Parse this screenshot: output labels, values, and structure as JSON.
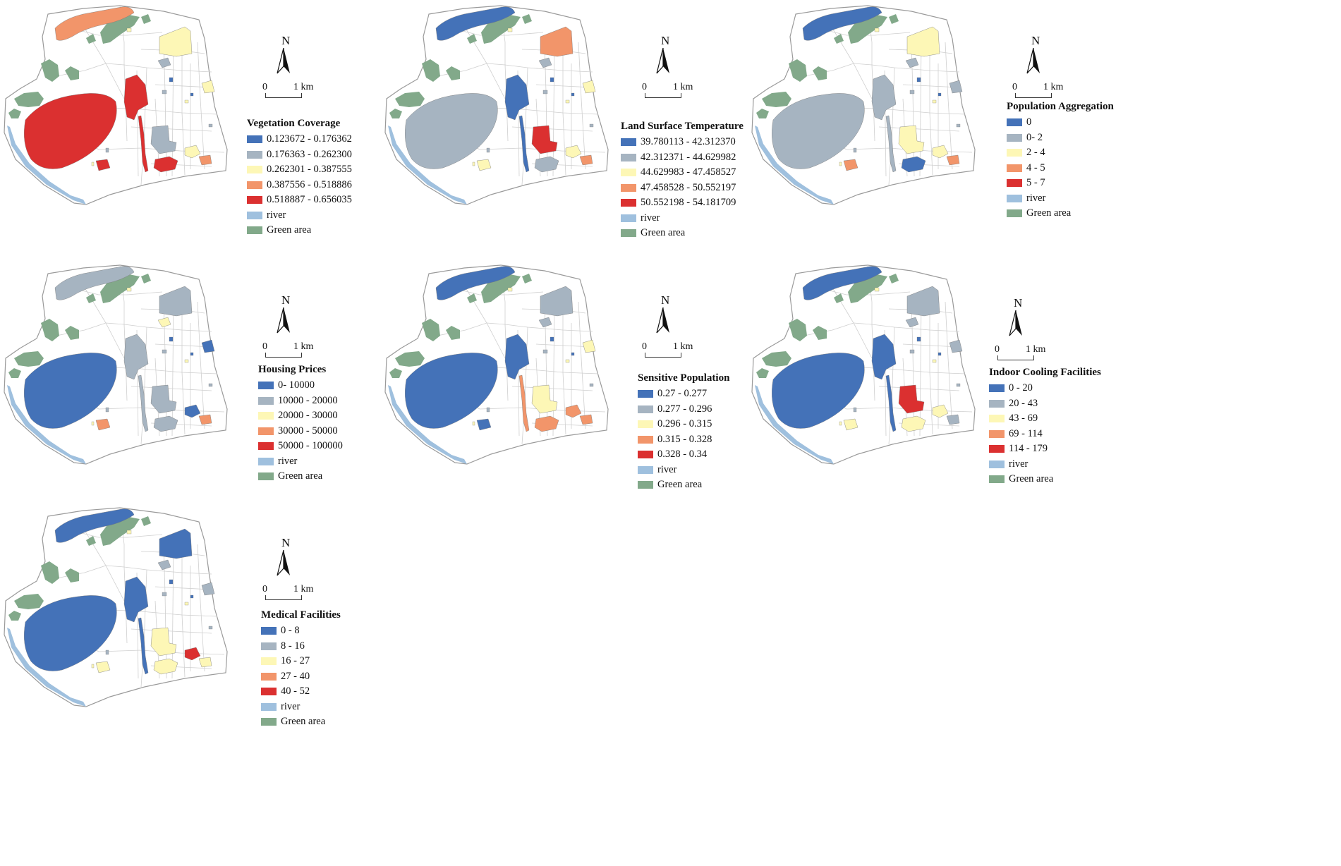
{
  "colors": {
    "c0": "#4472b8",
    "c1": "#a6b4c1",
    "c2": "#fdf7b6",
    "c3": "#f2956a",
    "c4": "#db3030",
    "river": "#9fc0de",
    "green": "#82a98a",
    "road": "#cfcfcf",
    "boundary": "#9a9a9a"
  },
  "compass": {
    "north": "N",
    "scale_start": "0",
    "scale_end": "1 km"
  },
  "maps": [
    {
      "id": "vegetation",
      "title": "Vegetation Coverage",
      "classes": [
        "0.123672 - 0.176362",
        "0.176363 - 0.262300",
        "0.262301 - 0.387555",
        "0.387556 - 0.518886",
        "0.518887 - 0.656035"
      ],
      "river_label": "river",
      "green_label": "Green area",
      "fills": {
        "bigLake": 4,
        "northBand": 3,
        "neHill": 2,
        "lakeNorth": 4,
        "canal": 4,
        "cLarge": 1,
        "cMed": 4,
        "cSmall": 2,
        "cSmall2": 3,
        "sw": 4,
        "eastEdge": 2,
        "north2": 1
      }
    },
    {
      "id": "lst",
      "title": "Land Surface Temperature",
      "classes": [
        "39.780113 - 42.312370",
        "42.312371 - 44.629982",
        "44.629983 - 47.458527",
        "47.458528 - 50.552197",
        "50.552198 - 54.181709"
      ],
      "river_label": "river",
      "green_label": "Green area",
      "fills": {
        "bigLake": 1,
        "northBand": 0,
        "neHill": 3,
        "lakeNorth": 0,
        "canal": 0,
        "cLarge": 4,
        "cMed": 1,
        "cSmall": 2,
        "cSmall2": 3,
        "sw": 2,
        "eastEdge": 2,
        "north2": 1
      }
    },
    {
      "id": "population",
      "title": "Population Aggregation",
      "classes": [
        "0",
        "0- 2",
        "2 - 4",
        "4 - 5",
        "5 - 7"
      ],
      "river_label": "river",
      "green_label": "Green area",
      "fills": {
        "bigLake": 1,
        "northBand": 0,
        "neHill": 2,
        "lakeNorth": 1,
        "canal": 1,
        "cLarge": 2,
        "cMed": 0,
        "cSmall": 2,
        "cSmall2": 3,
        "sw": 3,
        "eastEdge": 1,
        "north2": 1
      }
    },
    {
      "id": "housing",
      "title": "Housing Prices",
      "classes": [
        "0- 10000",
        "10000 - 20000",
        "20000 - 30000",
        "30000 - 50000",
        "50000 - 100000"
      ],
      "river_label": "river",
      "green_label": "Green area",
      "fills": {
        "bigLake": 0,
        "northBand": 1,
        "neHill": 1,
        "lakeNorth": 1,
        "canal": 1,
        "cLarge": 1,
        "cMed": 1,
        "cSmall": 0,
        "cSmall2": 3,
        "sw": 3,
        "eastEdge": 0,
        "north2": 2
      }
    },
    {
      "id": "sensitive",
      "title": "Sensitive Population",
      "classes": [
        "0.27 - 0.277",
        "0.277 - 0.296",
        "0.296 - 0.315",
        "0.315 - 0.328",
        "0.328 - 0.34"
      ],
      "river_label": "river",
      "green_label": "Green area",
      "fills": {
        "bigLake": 0,
        "northBand": 0,
        "neHill": 1,
        "lakeNorth": 0,
        "canal": 3,
        "cLarge": 2,
        "cMed": 3,
        "cSmall": 3,
        "cSmall2": 3,
        "sw": 0,
        "eastEdge": 2,
        "north2": 1
      }
    },
    {
      "id": "cooling",
      "title": "Indoor Cooling Facilities",
      "classes": [
        "0 - 20",
        "20 - 43",
        "43 - 69",
        "69 - 114",
        "114 - 179"
      ],
      "river_label": "river",
      "green_label": "Green area",
      "fills": {
        "bigLake": 0,
        "northBand": 0,
        "neHill": 1,
        "lakeNorth": 0,
        "canal": 0,
        "cLarge": 4,
        "cMed": 2,
        "cSmall": 2,
        "cSmall2": 1,
        "sw": 2,
        "eastEdge": 1,
        "north2": 1
      }
    },
    {
      "id": "medical",
      "title": "Medical Facilities",
      "classes": [
        "0 - 8",
        "8 - 16",
        "16 - 27",
        "27 - 40",
        "40 - 52"
      ],
      "river_label": "river",
      "green_label": "Green area",
      "fills": {
        "bigLake": 0,
        "northBand": 0,
        "neHill": 0,
        "lakeNorth": 0,
        "canal": 0,
        "cLarge": 2,
        "cMed": 2,
        "cSmall": 4,
        "cSmall2": 2,
        "sw": 2,
        "eastEdge": 1,
        "north2": 1
      }
    }
  ]
}
